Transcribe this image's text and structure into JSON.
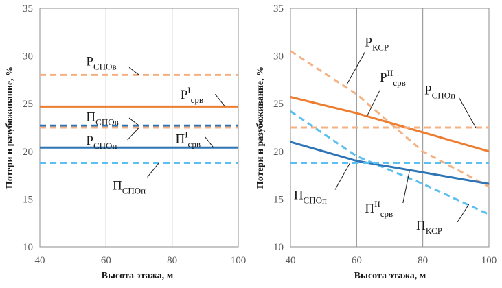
{
  "chart_data": [
    {
      "type": "line",
      "title": "",
      "xlabel": "Высота этажа, м",
      "ylabel": "Потери и разубоживание, %",
      "xlim": [
        40,
        100
      ],
      "ylim": [
        10,
        35
      ],
      "x_ticks": [
        "40",
        "60",
        "80",
        "100"
      ],
      "y_ticks": [
        "10",
        "15",
        "20",
        "25",
        "30",
        "35"
      ],
      "x_grid": [
        60,
        80
      ],
      "series": [
        {
          "id": "p_spov",
          "name": "PСПОв",
          "main": "P",
          "sub": "СПОв",
          "sup": "",
          "color": "#F4B183",
          "dash": true,
          "x": [
            40,
            100
          ],
          "y": [
            28.0,
            28.0
          ]
        },
        {
          "id": "p_srv1",
          "name": "PIсрв",
          "main": "P",
          "sub": "срв",
          "sup": "I",
          "color": "#ED7D31",
          "dash": false,
          "x": [
            40,
            100
          ],
          "y": [
            24.7,
            24.7
          ]
        },
        {
          "id": "pi_spov",
          "name": "ПСПОв",
          "main": "П",
          "sub": "СПОв",
          "sup": "",
          "color": "#2E75B6",
          "dash": true,
          "x": [
            40,
            100
          ],
          "y": [
            22.7,
            22.7
          ]
        },
        {
          "id": "p_spop",
          "name": "PСПОп",
          "main": "P",
          "sub": "СПОп",
          "sup": "",
          "color": "#F4B183",
          "dash": true,
          "x": [
            40,
            100
          ],
          "y": [
            22.5,
            22.5
          ]
        },
        {
          "id": "pi_srv1",
          "name": "ПIсрв",
          "main": "П",
          "sub": "срв",
          "sup": "I",
          "color": "#2E75B6",
          "dash": false,
          "x": [
            40,
            100
          ],
          "y": [
            20.4,
            20.4
          ]
        },
        {
          "id": "pi_spop",
          "name": "ПСПОп",
          "main": "П",
          "sub": "СПОп",
          "sup": "",
          "color": "#5BC0F0",
          "dash": true,
          "x": [
            40,
            100
          ],
          "y": [
            18.8,
            18.8
          ]
        }
      ],
      "annotations": [
        {
          "series": "p_spov",
          "main": "P",
          "sub": "СПОв",
          "sup": "",
          "tx": 54,
          "ty": 29.0,
          "ax": 67,
          "ay": 28.8,
          "bx": 70,
          "by": 28.0
        },
        {
          "series": "p_srv1",
          "main": "P",
          "sub": "срв",
          "sup": "I",
          "tx": 82.5,
          "ty": 25.5,
          "ax": 93,
          "ay": 26.0,
          "bx": 96,
          "by": 24.7
        },
        {
          "series": "pi_spov",
          "main": "П",
          "sub": "СПОв",
          "sup": "",
          "tx": 54,
          "ty": 23.2,
          "ax": 67,
          "ay": 23.5,
          "bx": 70,
          "by": 22.7
        },
        {
          "series": "p_spop",
          "main": "P",
          "sub": "СПОп",
          "sup": "",
          "tx": 54,
          "ty": 20.7,
          "ax": 66.5,
          "ay": 21.2,
          "bx": 70,
          "by": 22.5
        },
        {
          "series": "pi_srv1",
          "main": "П",
          "sub": "срв",
          "sup": "I",
          "tx": 81,
          "ty": 20.9,
          "ax": 90,
          "ay": 21.5,
          "bx": 92.5,
          "by": 20.4
        },
        {
          "series": "pi_spop",
          "main": "П",
          "sub": "СПОп",
          "sup": "",
          "tx": 62,
          "ty": 16.0,
          "ax": 72.5,
          "ay": 17.3,
          "bx": 76,
          "by": 18.8
        }
      ]
    },
    {
      "type": "line",
      "title": "",
      "xlabel": "Высота этажа, м",
      "ylabel": "Потери и разубоживание, %",
      "xlim": [
        40,
        100
      ],
      "ylim": [
        10,
        35
      ],
      "x_ticks": [
        "40",
        "60",
        "80",
        "100"
      ],
      "y_ticks": [
        "10",
        "15",
        "20",
        "25",
        "30",
        "35"
      ],
      "x_grid": [
        60,
        80
      ],
      "series": [
        {
          "id": "p_ksr",
          "name": "PКСР",
          "main": "P",
          "sub": "КСР",
          "sup": "",
          "color": "#F4B183",
          "dash": true,
          "x": [
            40,
            60,
            80,
            100
          ],
          "y": [
            30.5,
            26.0,
            20.0,
            16.3
          ]
        },
        {
          "id": "p_srv2",
          "name": "PIIсрв",
          "main": "P",
          "sub": "срв",
          "sup": "II",
          "color": "#ED7D31",
          "dash": false,
          "x": [
            40,
            60,
            80,
            100
          ],
          "y": [
            25.7,
            24.0,
            22.0,
            20.0
          ]
        },
        {
          "id": "p_spop2",
          "name": "PСПОп",
          "main": "P",
          "sub": "СПОп",
          "sup": "",
          "color": "#F4B183",
          "dash": true,
          "x": [
            40,
            100
          ],
          "y": [
            22.5,
            22.5
          ]
        },
        {
          "id": "pi_ksr",
          "name": "ПКСР",
          "main": "П",
          "sub": "КСР",
          "sup": "",
          "color": "#5BC0F0",
          "dash": true,
          "x": [
            40,
            60,
            80,
            100
          ],
          "y": [
            24.2,
            19.5,
            16.6,
            13.4
          ]
        },
        {
          "id": "pi_srv2",
          "name": "ПIIсрв",
          "main": "П",
          "sub": "срв",
          "sup": "II",
          "color": "#2E75B6",
          "dash": false,
          "x": [
            40,
            60,
            80,
            100
          ],
          "y": [
            21.0,
            19.0,
            17.8,
            16.6
          ]
        },
        {
          "id": "pi_spop2",
          "name": "ПСПОп",
          "main": "П",
          "sub": "СПОп",
          "sup": "",
          "color": "#5BC0F0",
          "dash": true,
          "x": [
            40,
            100
          ],
          "y": [
            18.8,
            18.8
          ]
        }
      ],
      "annotations": [
        {
          "series": "p_ksr",
          "main": "P",
          "sub": "КСР",
          "sup": "",
          "tx": 62.5,
          "ty": 31.0,
          "ax": 62.5,
          "ay": 30.4,
          "bx": 57,
          "by": 27.0
        },
        {
          "series": "p_srv2",
          "main": "P",
          "sub": "срв",
          "sup": "II",
          "tx": 67,
          "ty": 27.3,
          "ax": 67,
          "ay": 26.4,
          "bx": 63,
          "by": 23.6
        },
        {
          "series": "p_spop2",
          "main": "P",
          "sub": "СПОп",
          "sup": "",
          "tx": 80.5,
          "ty": 26.0,
          "ax": 91,
          "ay": 25.6,
          "bx": 96,
          "by": 22.5
        },
        {
          "series": "pi_spop2",
          "main": "П",
          "sub": "СПОп",
          "sup": "",
          "tx": 41,
          "ty": 15.0,
          "ax": 53.5,
          "ay": 16.0,
          "bx": 58,
          "by": 18.8
        },
        {
          "series": "pi_srv2",
          "main": "П",
          "sub": "срв",
          "sup": "II",
          "tx": 62.5,
          "ty": 13.6,
          "ax": 74,
          "ay": 14.6,
          "bx": 76,
          "by": 18.0
        },
        {
          "series": "pi_ksr",
          "main": "П",
          "sub": "КСР",
          "sup": "",
          "tx": 78,
          "ty": 11.8,
          "ax": 90.5,
          "ay": 12.6,
          "bx": 94,
          "by": 14.5
        }
      ]
    }
  ]
}
